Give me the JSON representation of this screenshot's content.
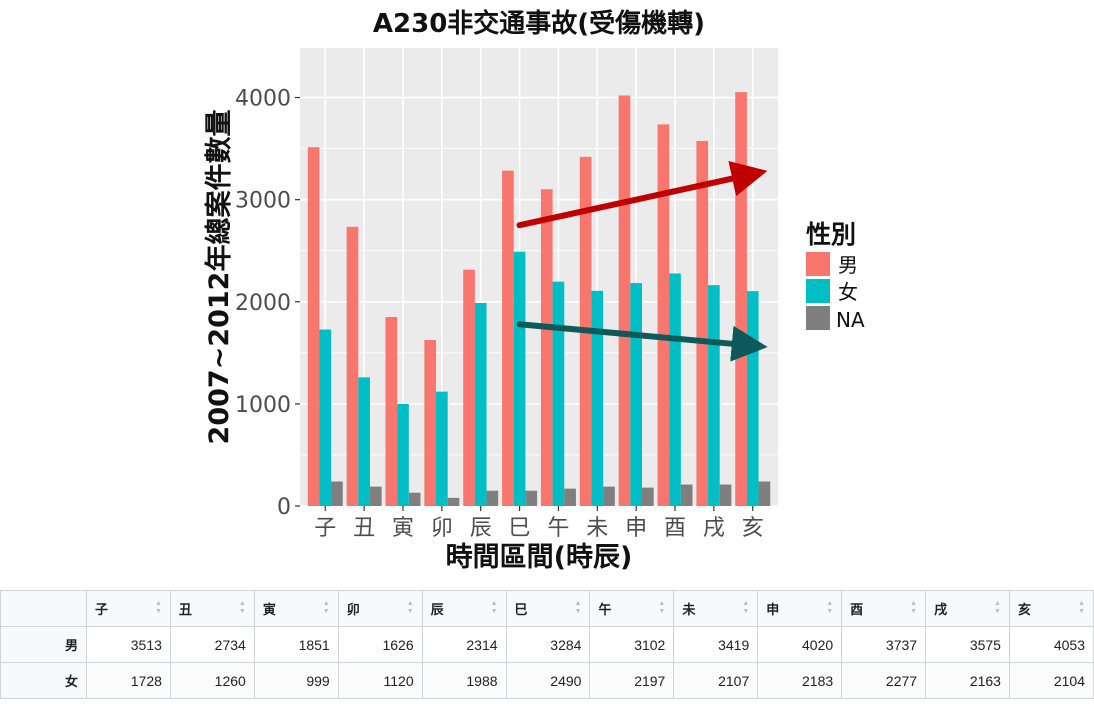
{
  "chart_data": {
    "type": "bar",
    "title": "A230非交通事故(受傷機轉)",
    "xlabel": "時間區間(時辰)",
    "ylabel": "2007~2012年總案件數量",
    "categories": [
      "子",
      "丑",
      "寅",
      "卯",
      "辰",
      "巳",
      "午",
      "未",
      "申",
      "酉",
      "戌",
      "亥"
    ],
    "ylim": [
      0,
      4250
    ],
    "yticks": [
      0,
      1000,
      2000,
      3000,
      4000
    ],
    "grid": true,
    "legend": {
      "title": "性別",
      "position": "right",
      "entries": [
        "男",
        "女",
        "NA"
      ]
    },
    "series": [
      {
        "name": "男",
        "color": "#F8766D",
        "values": [
          3513,
          2734,
          1851,
          1626,
          2314,
          3284,
          3102,
          3419,
          4020,
          3737,
          3575,
          4053
        ]
      },
      {
        "name": "女",
        "color": "#00BFC4",
        "values": [
          1728,
          1260,
          999,
          1120,
          1988,
          2490,
          2197,
          2107,
          2183,
          2277,
          2163,
          2104
        ]
      },
      {
        "name": "NA",
        "color": "#7F7F7F",
        "values": [
          240,
          190,
          130,
          80,
          150,
          150,
          170,
          190,
          180,
          210,
          210,
          240
        ]
      }
    ],
    "annotations": [
      {
        "type": "arrow",
        "color": "#C00000",
        "from": {
          "x": "巳",
          "y": 2750
        },
        "to": {
          "x": "亥",
          "y": 3250
        }
      },
      {
        "type": "arrow",
        "color": "#0E5A5A",
        "from": {
          "x": "巳",
          "y": 1780
        },
        "to": {
          "x": "亥",
          "y": 1570
        }
      }
    ]
  },
  "table": {
    "columns": [
      "子",
      "丑",
      "寅",
      "卯",
      "辰",
      "巳",
      "午",
      "未",
      "申",
      "酉",
      "戌",
      "亥"
    ],
    "rows": [
      {
        "label": "男",
        "values": [
          "3513",
          "2734",
          "1851",
          "1626",
          "2314",
          "3284",
          "3102",
          "3419",
          "4020",
          "3737",
          "3575",
          "4053"
        ]
      },
      {
        "label": "女",
        "values": [
          "1728",
          "1260",
          "999",
          "1120",
          "1988",
          "2490",
          "2197",
          "2107",
          "2183",
          "2277",
          "2163",
          "2104"
        ]
      }
    ]
  }
}
